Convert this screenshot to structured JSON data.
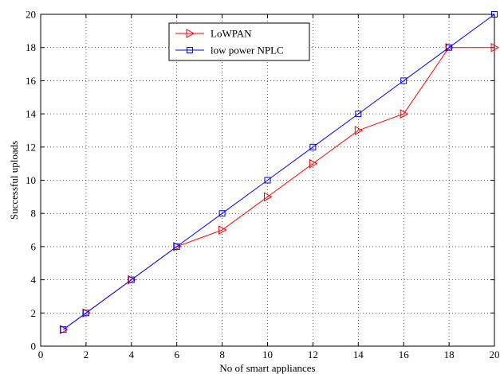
{
  "chart_data": {
    "type": "line",
    "title": "",
    "xlabel": "No of smart appliances",
    "ylabel": "Successful uploads",
    "xlim": [
      0,
      20
    ],
    "ylim": [
      0,
      20
    ],
    "xticks": [
      "0",
      "2",
      "4",
      "6",
      "8",
      "10",
      "12",
      "14",
      "16",
      "18",
      "20"
    ],
    "yticks": [
      "0",
      "2",
      "4",
      "6",
      "8",
      "10",
      "12",
      "14",
      "16",
      "18",
      "20"
    ],
    "grid": true,
    "grid_style": "dotted",
    "legend_position": "top-center",
    "series": [
      {
        "name": "LoWPAN",
        "color": "#ff0000",
        "marker": "triangle-right",
        "x": [
          1,
          2,
          4,
          6,
          8,
          10,
          12,
          14,
          16,
          18,
          20
        ],
        "y": [
          1,
          2,
          4,
          6,
          7,
          9,
          11,
          13,
          14,
          18,
          18
        ]
      },
      {
        "name": "low power NPLC",
        "color": "#0000ff",
        "marker": "square",
        "x": [
          1,
          2,
          4,
          6,
          8,
          10,
          12,
          14,
          16,
          18,
          20
        ],
        "y": [
          1,
          2,
          4,
          6,
          8,
          10,
          12,
          14,
          16,
          18,
          20
        ]
      }
    ]
  }
}
